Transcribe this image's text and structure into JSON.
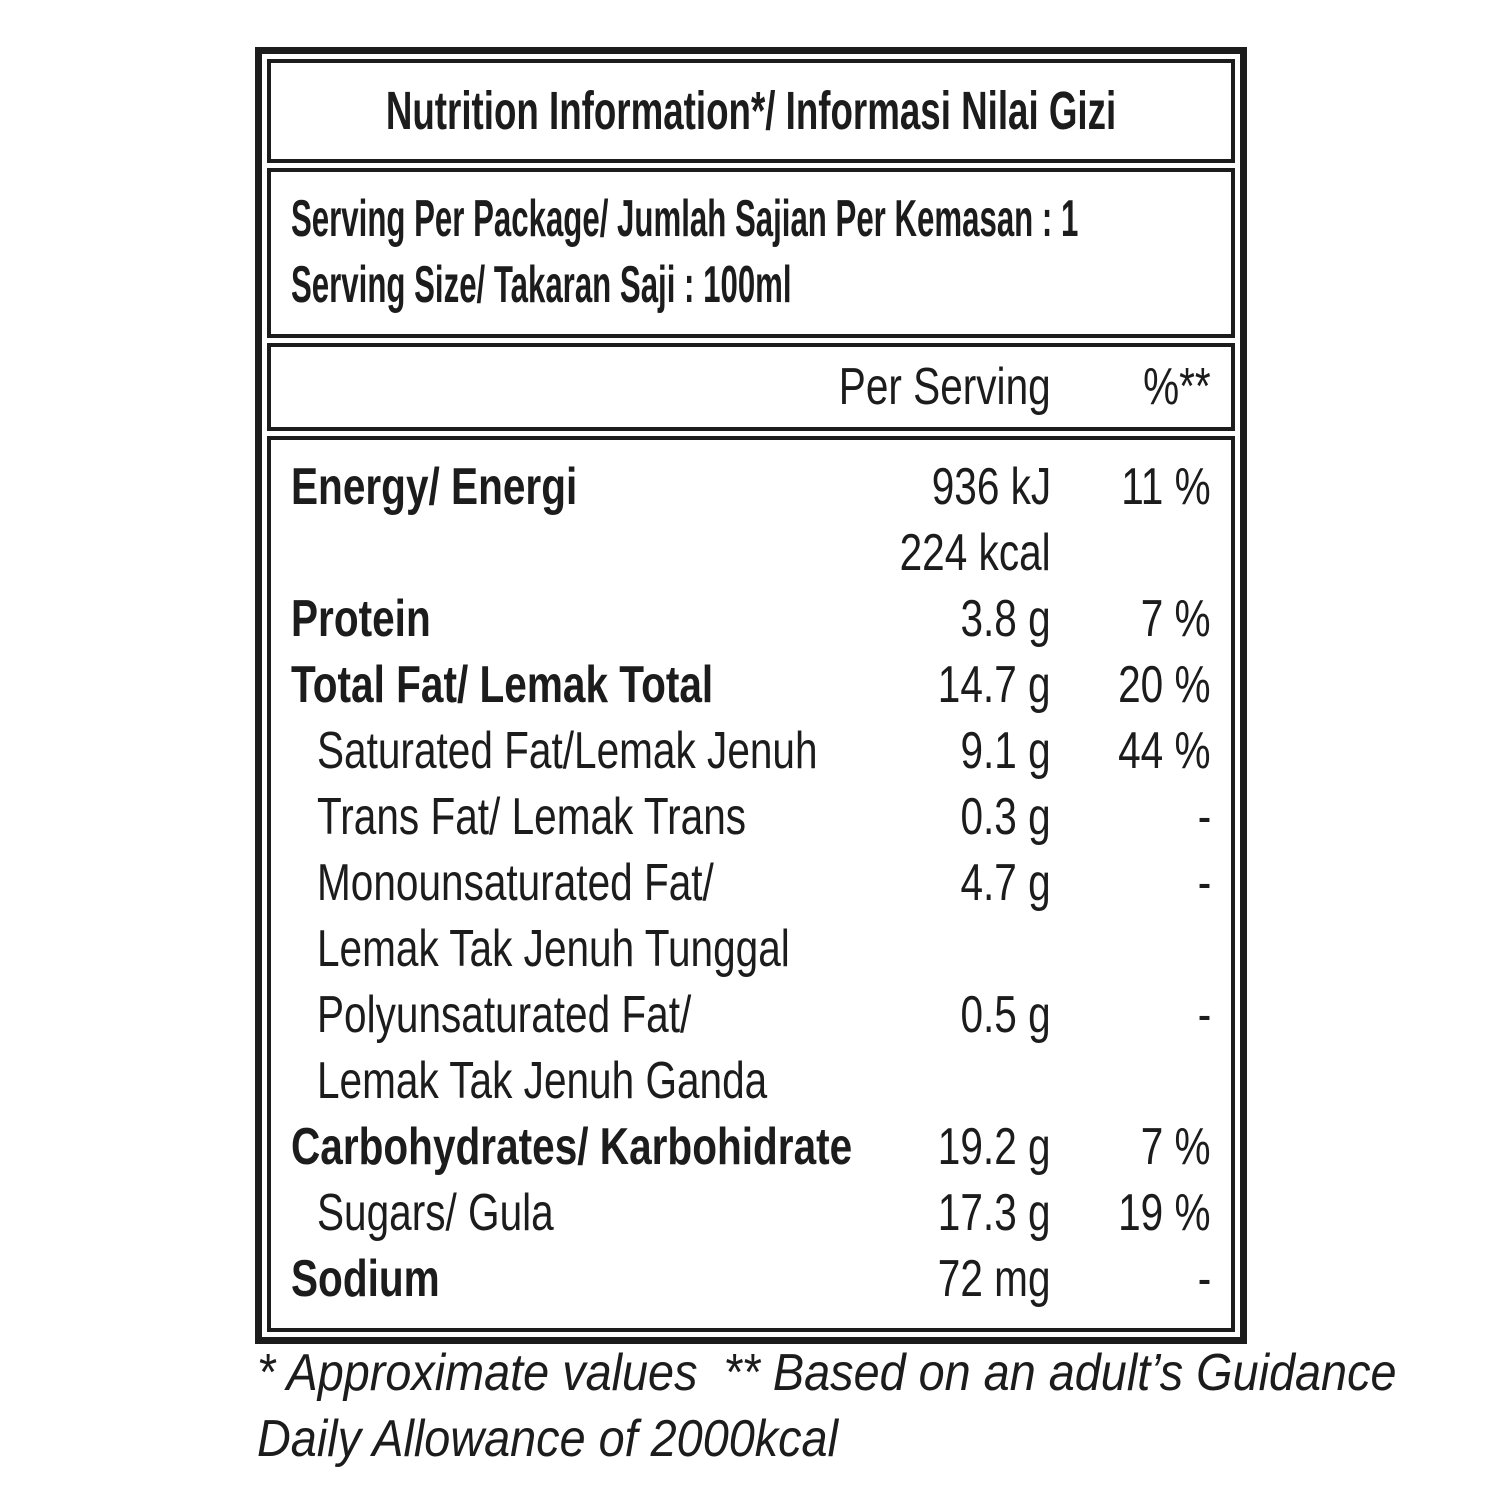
{
  "label": {
    "title": "Nutrition Information*/ Informasi Nilai Gizi",
    "serving_info": {
      "line1": "Serving Per Package/ Jumlah Sajian Per Kemasan : 1",
      "line2": "Serving Size/ Takaran Saji : 100ml"
    },
    "columns": {
      "amount": "Per Serving",
      "percent": "%**"
    },
    "rows": [
      {
        "label": "Energy/ Energi",
        "value": "936 kJ",
        "percent": "11 %",
        "level": "main",
        "continuation": false
      },
      {
        "label": "",
        "value": "224 kcal",
        "percent": "",
        "level": "main",
        "continuation": true
      },
      {
        "label": "Protein",
        "value": "3.8 g",
        "percent": "7 %",
        "level": "main",
        "continuation": false
      },
      {
        "label": "Total Fat/ Lemak Total",
        "value": "14.7 g",
        "percent": "20 %",
        "level": "main",
        "continuation": false
      },
      {
        "label": "Saturated Fat/Lemak Jenuh",
        "value": "9.1 g",
        "percent": "44 %",
        "level": "sub",
        "continuation": false
      },
      {
        "label": "Trans Fat/ Lemak Trans",
        "value": "0.3 g",
        "percent": "-",
        "level": "sub",
        "continuation": false
      },
      {
        "label": "Monounsaturated Fat/",
        "value": "4.7 g",
        "percent": "-",
        "level": "sub",
        "continuation": false
      },
      {
        "label": "Lemak Tak Jenuh Tunggal",
        "value": "",
        "percent": "",
        "level": "sub",
        "continuation": true
      },
      {
        "label": "Polyunsaturated Fat/",
        "value": "0.5 g",
        "percent": "-",
        "level": "sub",
        "continuation": false
      },
      {
        "label": "Lemak Tak Jenuh Ganda",
        "value": "",
        "percent": "",
        "level": "sub",
        "continuation": true
      },
      {
        "label": "Carbohydrates/ Karbohidrate",
        "value": "19.2 g",
        "percent": "7 %",
        "level": "main",
        "continuation": false
      },
      {
        "label": "Sugars/ Gula",
        "value": "17.3 g",
        "percent": "19 %",
        "level": "sub",
        "continuation": false
      },
      {
        "label": "Sodium",
        "value": "72 mg",
        "percent": "-",
        "level": "main",
        "continuation": false
      }
    ],
    "footnote": {
      "line1": "* Approximate values  ** Based on an adult’s Guidance",
      "line2": "Daily Allowance of 2000kcal"
    },
    "colors": {
      "text": "#1c1c1c",
      "border": "#1c1c1c",
      "background": "#ffffff"
    }
  }
}
